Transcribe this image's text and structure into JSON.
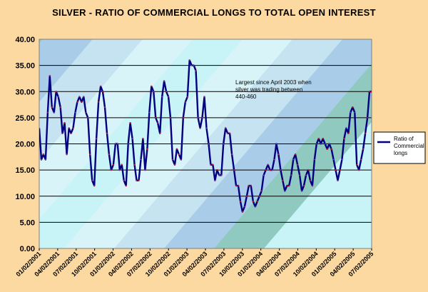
{
  "chart_data": {
    "type": "line",
    "title": "SILVER - RATIO OF COMMERCIAL LONGS TO TOTAL OPEN INTEREST",
    "xlabel": "",
    "ylabel": "",
    "ylim": [
      0,
      40
    ],
    "y_ticks": [
      "0.00",
      "5.00",
      "10.00",
      "15.00",
      "20.00",
      "25.00",
      "30.00",
      "35.00",
      "40.00"
    ],
    "x_tick_labels": [
      "01/02/2001",
      "04/02/2001",
      "07/02/2001",
      "10/02/2001",
      "01/02/2002",
      "04/02/2002",
      "07/02/2002",
      "10/02/2002",
      "01/02/2003",
      "04/02/2003",
      "07/02/2003",
      "10/02/2003",
      "01/02/2004",
      "04/02/2004",
      "07/02/2004",
      "10/02/2004",
      "01/02/2005",
      "04/02/2005",
      "07/02/2005"
    ],
    "grid": true,
    "legend_position": "right",
    "annotation": "Largest since April 2003 when silver was trading between 440-460",
    "series": [
      {
        "name": "Ratio of Commercial longs",
        "color": "#000080",
        "marker_color": "#E0203A",
        "values": [
          23,
          17,
          18,
          17,
          26,
          33,
          27,
          26,
          30,
          29,
          27,
          22,
          24,
          18,
          23,
          22,
          23,
          26,
          28,
          29,
          28,
          29,
          26,
          25,
          18,
          13,
          12,
          21,
          28,
          31,
          30,
          27,
          22,
          18,
          15,
          16,
          20,
          20,
          15,
          16,
          13,
          12,
          20,
          24,
          21,
          16,
          13,
          13,
          17,
          21,
          15,
          19,
          26,
          31,
          30,
          25,
          24,
          22,
          29,
          32,
          30,
          29,
          25,
          17,
          16,
          19,
          18,
          17,
          25,
          28,
          29,
          36,
          35,
          35,
          34,
          25,
          23,
          25,
          29,
          23,
          20,
          16,
          16,
          13,
          15,
          14,
          14,
          20,
          23,
          22,
          22,
          18,
          15,
          12,
          12,
          9,
          7,
          8,
          10,
          12,
          12,
          9,
          8,
          9,
          10,
          11,
          14,
          15,
          16,
          15,
          15,
          17,
          20,
          18,
          15,
          13,
          11,
          12,
          12,
          14,
          17,
          18,
          16,
          14,
          11,
          12,
          14,
          15,
          13,
          12,
          17,
          20,
          21,
          20,
          21,
          20,
          19,
          20,
          19,
          17,
          15,
          13,
          15,
          17,
          21,
          23,
          22,
          26,
          27,
          26,
          16,
          15,
          17,
          19,
          22,
          25,
          30,
          30
        ]
      }
    ]
  }
}
